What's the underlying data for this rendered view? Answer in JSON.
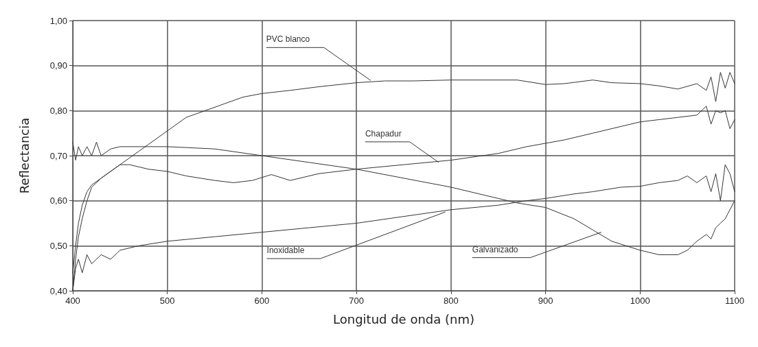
{
  "chart_data": {
    "type": "line",
    "xlabel": "Longitud de onda (nm)",
    "ylabel": "Reflectancia",
    "xlim": [
      400,
      1100
    ],
    "xticks": [
      400,
      500,
      600,
      700,
      800,
      900,
      1000,
      1100
    ],
    "ylim": [
      0.4,
      1.0
    ],
    "yticks": [
      {
        "value": 0.4,
        "label": "0,40"
      },
      {
        "value": 0.5,
        "label": "0,50"
      },
      {
        "value": 0.6,
        "label": "0,60"
      },
      {
        "value": 0.7,
        "label": "0,70"
      },
      {
        "value": 0.8,
        "label": "0,80"
      },
      {
        "value": 0.9,
        "label": "0,90"
      },
      {
        "value": 1.0,
        "label": "1,00"
      }
    ],
    "grid": true,
    "marker": "none",
    "line_style": "solid",
    "annotations": [
      {
        "text": "PVC blanco",
        "x": 715,
        "y": 0.867
      },
      {
        "text": "Chapadur",
        "x": 787,
        "y": 0.685
      },
      {
        "text": "Inoxidable",
        "x": 794,
        "y": 0.575
      },
      {
        "text": "Galvanizado",
        "x": 959,
        "y": 0.53
      }
    ],
    "series": [
      {
        "color": "#333333",
        "x": [
          400,
          403,
          406,
          410,
          415,
          420,
          430,
          440,
          450,
          460,
          470,
          480,
          500,
          520,
          540,
          560,
          580,
          600,
          630,
          660,
          700,
          730,
          760,
          800,
          830,
          870,
          900,
          920,
          950,
          970,
          1000,
          1020,
          1040,
          1060,
          1070,
          1075,
          1080,
          1085,
          1090,
          1095,
          1100
        ],
        "values": [
          0.4,
          0.47,
          0.52,
          0.56,
          0.6,
          0.63,
          0.65,
          0.665,
          0.68,
          0.695,
          0.71,
          0.725,
          0.755,
          0.785,
          0.8,
          0.815,
          0.83,
          0.838,
          0.845,
          0.853,
          0.862,
          0.866,
          0.866,
          0.868,
          0.868,
          0.868,
          0.858,
          0.86,
          0.868,
          0.862,
          0.86,
          0.855,
          0.848,
          0.86,
          0.845,
          0.875,
          0.82,
          0.885,
          0.85,
          0.885,
          0.86
        ]
      },
      {
        "color": "#333333",
        "x": [
          400,
          403,
          406,
          410,
          415,
          420,
          430,
          440,
          450,
          460,
          480,
          500,
          520,
          550,
          570,
          590,
          610,
          630,
          660,
          700,
          750,
          800,
          850,
          880,
          920,
          950,
          980,
          1000,
          1020,
          1040,
          1060,
          1070,
          1075,
          1080,
          1085,
          1090,
          1095,
          1100
        ],
        "values": [
          0.44,
          0.5,
          0.55,
          0.59,
          0.62,
          0.635,
          0.65,
          0.665,
          0.68,
          0.68,
          0.67,
          0.665,
          0.655,
          0.645,
          0.64,
          0.645,
          0.658,
          0.645,
          0.66,
          0.67,
          0.68,
          0.69,
          0.705,
          0.72,
          0.735,
          0.75,
          0.765,
          0.775,
          0.78,
          0.785,
          0.79,
          0.81,
          0.77,
          0.8,
          0.795,
          0.8,
          0.76,
          0.78
        ]
      },
      {
        "color": "#333333",
        "x": [
          400,
          403,
          406,
          410,
          415,
          420,
          425,
          430,
          440,
          450,
          470,
          500,
          550,
          600,
          650,
          700,
          750,
          800,
          850,
          870,
          900,
          930,
          950,
          970,
          1000,
          1020,
          1040,
          1050,
          1060,
          1070,
          1075,
          1080,
          1085,
          1090,
          1095,
          1100
        ],
        "values": [
          0.73,
          0.69,
          0.72,
          0.7,
          0.72,
          0.7,
          0.73,
          0.7,
          0.715,
          0.72,
          0.72,
          0.72,
          0.715,
          0.7,
          0.685,
          0.67,
          0.65,
          0.63,
          0.605,
          0.595,
          0.585,
          0.56,
          0.535,
          0.51,
          0.49,
          0.48,
          0.48,
          0.49,
          0.51,
          0.525,
          0.515,
          0.54,
          0.55,
          0.56,
          0.58,
          0.6
        ]
      },
      {
        "color": "#333333",
        "x": [
          400,
          403,
          406,
          410,
          415,
          420,
          430,
          440,
          450,
          470,
          500,
          550,
          600,
          650,
          700,
          750,
          800,
          850,
          880,
          900,
          930,
          950,
          980,
          1000,
          1020,
          1040,
          1050,
          1060,
          1070,
          1075,
          1080,
          1085,
          1090,
          1095,
          1100
        ],
        "values": [
          0.4,
          0.45,
          0.47,
          0.44,
          0.48,
          0.46,
          0.48,
          0.47,
          0.49,
          0.5,
          0.51,
          0.52,
          0.53,
          0.54,
          0.55,
          0.565,
          0.58,
          0.59,
          0.6,
          0.605,
          0.615,
          0.62,
          0.63,
          0.632,
          0.64,
          0.645,
          0.655,
          0.64,
          0.655,
          0.62,
          0.66,
          0.6,
          0.68,
          0.66,
          0.62
        ]
      }
    ]
  }
}
